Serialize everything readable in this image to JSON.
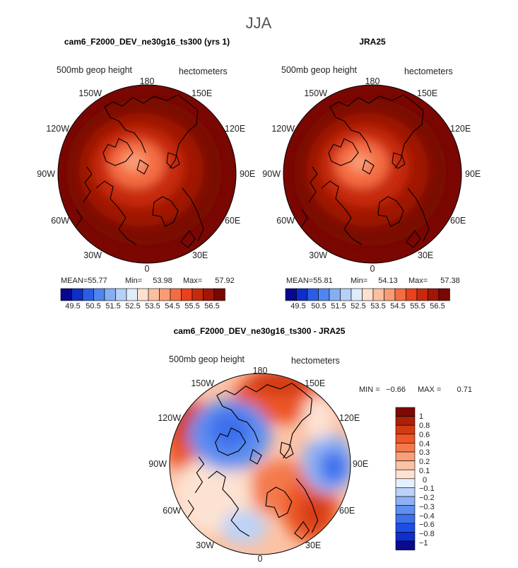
{
  "page_title": "JJA",
  "colors": {
    "full_field": [
      "#08088f",
      "#0d2fc9",
      "#2a5de6",
      "#4f85ee",
      "#85aef3",
      "#b6d1f7",
      "#e1ecfb",
      "#fde0cf",
      "#fbbf9f",
      "#f89c74",
      "#f46c43",
      "#e8421b",
      "#c72a0b",
      "#a11606",
      "#7a0702"
    ],
    "difference": [
      "#0b0a8e",
      "#0e2fcd",
      "#1d4ee3",
      "#3d70ec",
      "#5f8ff0",
      "#8db1f4",
      "#bcd3f8",
      "#e4efff",
      "#fde2d2",
      "#fbc3a6",
      "#f8a07a",
      "#f47a4d",
      "#ec5628",
      "#d33a12",
      "#ad1f06",
      "#7c0a03"
    ],
    "land_outline": "#000000"
  },
  "chart_data": [
    {
      "type": "heatmap",
      "projection": "north-polar-stereographic",
      "title": "cam6_F2000_DEV_ne30g16_ts300 (yrs 1)",
      "variable_label": "500mb geop height",
      "units_label": "hectometers",
      "longitude_labels": [
        "180",
        "150E",
        "120E",
        "90E",
        "60E",
        "30E",
        "0",
        "30W",
        "60W",
        "90W",
        "120W",
        "150W"
      ],
      "stats": {
        "mean_label": "MEAN=",
        "mean": "55.77",
        "min_label": "Min=",
        "min": "53.98",
        "max_label": "Max=",
        "max": "57.92"
      },
      "colorbar_levels": [
        "49.5",
        "50.5",
        "51.5",
        "52.5",
        "53.5",
        "54.5",
        "55.5",
        "56.5"
      ],
      "range": [
        49.5,
        56.5
      ],
      "pole_value": 54.0,
      "edge_value": 57.6
    },
    {
      "type": "heatmap",
      "projection": "north-polar-stereographic",
      "title": "JRA25",
      "variable_label": "500mb geop height",
      "units_label": "hectometers",
      "longitude_labels": [
        "180",
        "150E",
        "120E",
        "90E",
        "60E",
        "30E",
        "0",
        "30W",
        "60W",
        "90W",
        "120W",
        "150W"
      ],
      "stats": {
        "mean_label": "MEAN=",
        "mean": "55.81",
        "min_label": "Min=",
        "min": "54.13",
        "max_label": "Max=",
        "max": "57.38"
      },
      "colorbar_levels": [
        "49.5",
        "50.5",
        "51.5",
        "52.5",
        "53.5",
        "54.5",
        "55.5",
        "56.5"
      ],
      "range": [
        49.5,
        56.5
      ],
      "pole_value": 54.2,
      "edge_value": 57.3
    },
    {
      "type": "heatmap",
      "projection": "north-polar-stereographic",
      "title": "cam6_F2000_DEV_ne30g16_ts300 - JRA25",
      "variable_label": "500mb geop height",
      "units_label": "hectometers",
      "longitude_labels": [
        "180",
        "150E",
        "120E",
        "90E",
        "60E",
        "30E",
        "0",
        "30W",
        "60W",
        "90W",
        "120W",
        "150W"
      ],
      "stats": {
        "min_label": "MIN =",
        "min": "−0.66",
        "max_label": "MAX =",
        "max": "0.71"
      },
      "colorbar_levels": [
        "1",
        "0.8",
        "0.6",
        "0.4",
        "0.3",
        "0.2",
        "0.1",
        "0",
        "−0.1",
        "−0.2",
        "−0.3",
        "−0.4",
        "−0.6",
        "−0.8",
        "−1"
      ],
      "colorbar_values": [
        -1,
        -0.8,
        -0.6,
        -0.4,
        -0.3,
        -0.2,
        -0.1,
        0,
        0.1,
        0.2,
        0.3,
        0.4,
        0.6,
        0.8,
        1
      ],
      "range": [
        -0.66,
        0.71
      ]
    }
  ]
}
